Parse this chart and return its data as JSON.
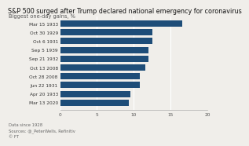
{
  "title": "S&P 500 surged after Trump declared national emergency for coronavirus",
  "subtitle": "Biggest one-day gains, %",
  "categories": [
    "Mar 15 1933",
    "Oct 30 1929",
    "Oct 6 1931",
    "Sep 5 1939",
    "Sep 21 1932",
    "Oct 13 2008",
    "Oct 28 2008",
    "Jun 22 1931",
    "Apr 20 1933",
    "Mar 13 2020"
  ],
  "values": [
    16.61,
    12.53,
    12.53,
    12.0,
    12.0,
    11.58,
    10.79,
    10.79,
    9.52,
    9.29
  ],
  "bar_color": "#1e4d78",
  "bg_color": "#f0eeea",
  "xlim": [
    0,
    20
  ],
  "xticks": [
    0,
    5,
    10,
    15,
    20
  ],
  "footnote1": "Data since 1928",
  "footnote2": "Sources: @_PeterWells, Refinitiv",
  "footnote3": "© FT",
  "title_fontsize": 5.8,
  "subtitle_fontsize": 4.8,
  "label_fontsize": 4.2,
  "tick_fontsize": 4.2,
  "footnote_fontsize": 3.8
}
